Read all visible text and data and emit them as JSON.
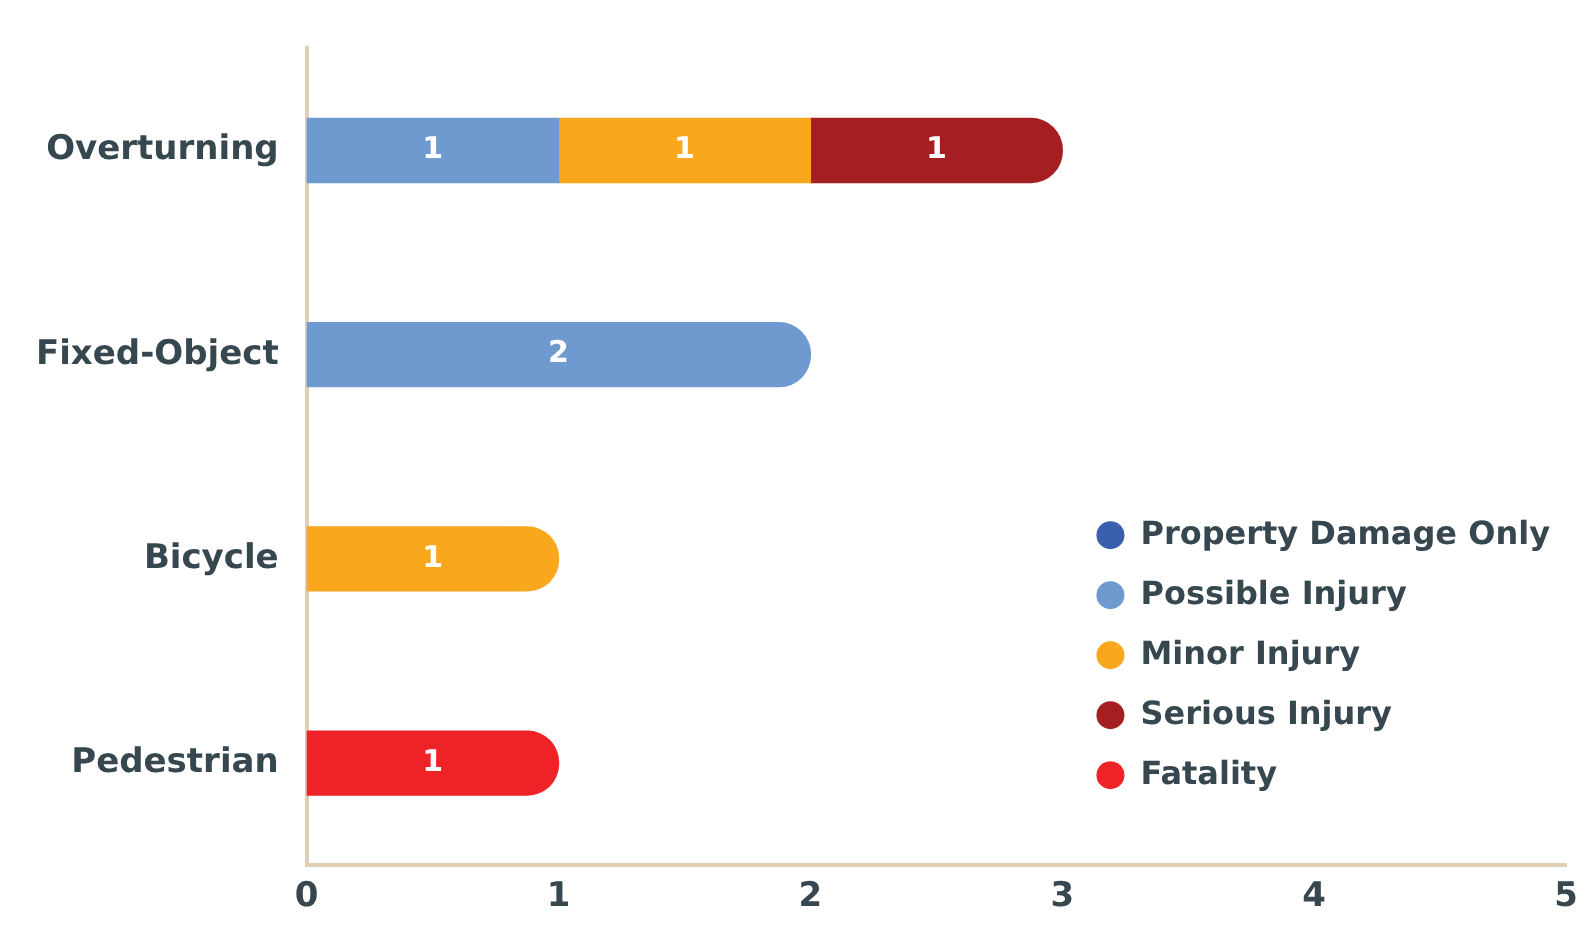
{
  "chart_data": {
    "type": "bar",
    "orientation": "horizontal",
    "stacked": true,
    "categories": [
      "Overturning",
      "Fixed-Object",
      "Bicycle",
      "Pedestrian"
    ],
    "series": [
      {
        "name": "Property Damage Only",
        "color": "#3a5faf",
        "values": [
          null,
          null,
          null,
          null
        ]
      },
      {
        "name": "Possible Injury",
        "color": "#6f9acf",
        "values": [
          1,
          2,
          null,
          null
        ]
      },
      {
        "name": "Minor Injury",
        "color": "#f9a81e",
        "values": [
          1,
          null,
          1,
          null
        ]
      },
      {
        "name": "Serious Injury",
        "color": "#a51e22",
        "values": [
          1,
          null,
          null,
          null
        ]
      },
      {
        "name": "Fatality",
        "color": "#ee2227",
        "values": [
          null,
          null,
          null,
          1
        ]
      }
    ],
    "xlim": [
      0,
      5
    ],
    "xticks": [
      0,
      1,
      2,
      3,
      4,
      5
    ],
    "grid": false,
    "legend": "bottom right",
    "data_labels": true
  }
}
